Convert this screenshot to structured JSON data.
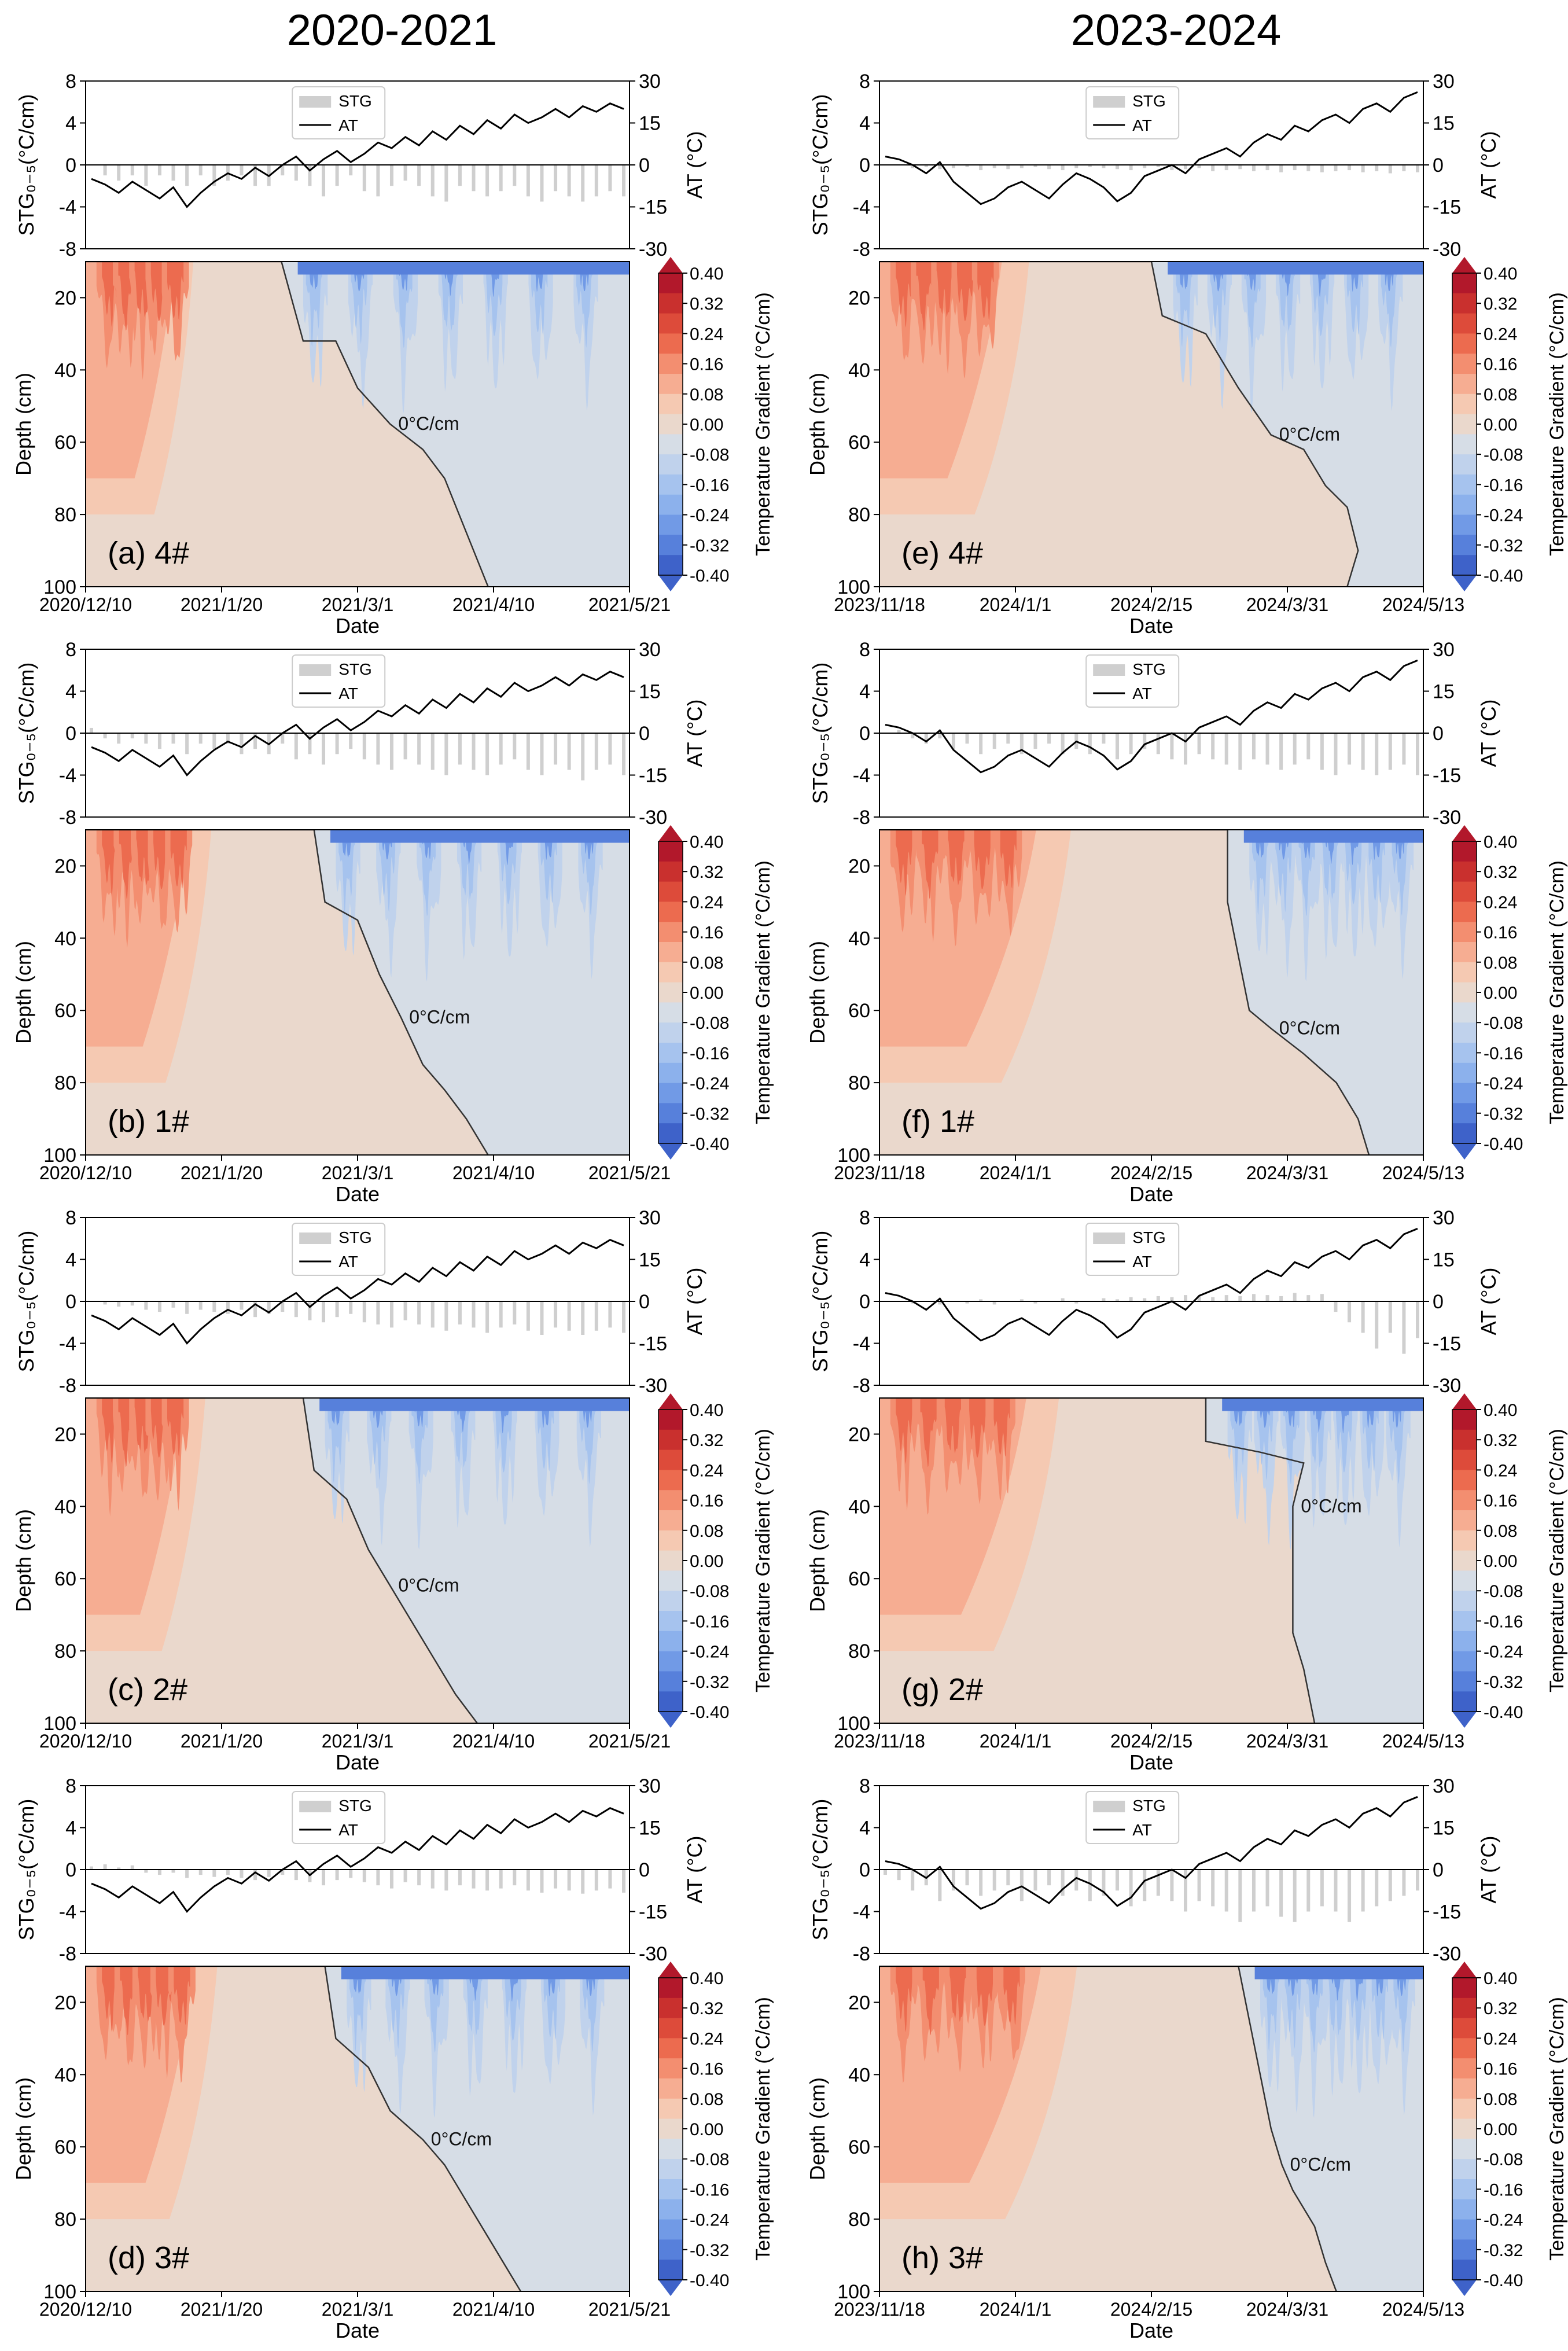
{
  "titles": {
    "left": "2020-2021",
    "right": "2023-2024"
  },
  "common": {
    "line_ylabel": "STG₀₋₅(°C/cm)",
    "line_y2label": "AT (°C)",
    "line_yticks": [
      "8",
      "4",
      "0",
      "-4",
      "-8"
    ],
    "line_y2ticks": [
      "30",
      "15",
      "0",
      "-15",
      "-30"
    ],
    "legend": {
      "stg": "STG",
      "at": "AT"
    },
    "contour_ylabel": "Depth (cm)",
    "contour_yticks": [
      "20",
      "40",
      "60",
      "80",
      "100"
    ],
    "contour_xlabel": "Date",
    "colorbar_label": "Temperature Gradient (°C/cm)",
    "colorbar_ticks": [
      "0.40",
      "0.32",
      "0.24",
      "0.16",
      "0.08",
      "0.00",
      "-0.08",
      "-0.16",
      "-0.24",
      "-0.32",
      "-0.40"
    ],
    "colors": {
      "levels": [
        "#b2182b",
        "#c9302e",
        "#dd4b3a",
        "#ec6b4f",
        "#f38e70",
        "#f6ad92",
        "#f5c9b2",
        "#ead8cc",
        "#d6dde6",
        "#c0d2ec",
        "#a6c3ee",
        "#8cb1ec",
        "#719ae6",
        "#5780db",
        "#3e62c9"
      ],
      "line": "#000000",
      "bar": "#cfcfcf"
    }
  },
  "chart_data": [
    {
      "id": "a",
      "label": "(a)  4#",
      "site": "4#",
      "period": "2020-2021",
      "type": "contour",
      "xticks": [
        "2020/12/10",
        "2021/1/20",
        "2021/3/1",
        "2021/4/10",
        "2021/5/21"
      ],
      "zero_contour_label": "0°C/cm",
      "zero_line": [
        [
          0,
          10
        ],
        [
          0.36,
          10
        ],
        [
          0.4,
          32
        ],
        [
          0.46,
          32
        ],
        [
          0.5,
          45
        ],
        [
          0.56,
          55
        ],
        [
          0.62,
          62
        ],
        [
          0.66,
          70
        ],
        [
          0.7,
          85
        ],
        [
          0.74,
          100
        ]
      ],
      "at": [
        -5,
        -7,
        -10,
        -6,
        -9,
        -12,
        -8,
        -15,
        -10,
        -6,
        -3,
        -5,
        -1,
        -4,
        0,
        3,
        -2,
        2,
        5,
        1,
        4,
        8,
        6,
        10,
        7,
        12,
        9,
        14,
        11,
        16,
        13,
        18,
        15,
        17,
        20,
        17,
        21,
        19,
        22,
        20
      ],
      "stg": [
        0,
        -1,
        -1.5,
        -1,
        -2,
        -1,
        -1.5,
        -2,
        -1,
        -2,
        -1.5,
        -1,
        -2,
        -2,
        -1,
        -1.5,
        -2,
        -3,
        -2,
        -1,
        -2.5,
        -3,
        -2,
        -1.5,
        -2,
        -3,
        -3.5,
        -2,
        -2.5,
        -3,
        -2.5,
        -2,
        -3,
        -3.5,
        -2.5,
        -3,
        -3.5,
        -3,
        -2.5,
        -3
      ]
    },
    {
      "id": "e",
      "label": "(e)  4#",
      "site": "4#",
      "period": "2023-2024",
      "type": "contour",
      "xticks": [
        "2023/11/18",
        "2024/1/1",
        "2024/2/15",
        "2024/3/31",
        "2024/5/13"
      ],
      "zero_contour_label": "0°C/cm",
      "zero_line": [
        [
          0,
          10
        ],
        [
          0.5,
          10
        ],
        [
          0.52,
          25
        ],
        [
          0.6,
          30
        ],
        [
          0.66,
          45
        ],
        [
          0.72,
          58
        ],
        [
          0.78,
          62
        ],
        [
          0.82,
          72
        ],
        [
          0.86,
          78
        ],
        [
          0.88,
          90
        ],
        [
          0.86,
          100
        ]
      ],
      "at": [
        3,
        2,
        0,
        -3,
        1,
        -6,
        -10,
        -14,
        -12,
        -8,
        -6,
        -9,
        -12,
        -7,
        -3,
        -5,
        -8,
        -13,
        -10,
        -4,
        -2,
        0,
        -3,
        2,
        4,
        6,
        3,
        8,
        11,
        9,
        14,
        12,
        16,
        18,
        15,
        20,
        22,
        19,
        24,
        26
      ],
      "stg": [
        0,
        0,
        -0.3,
        -0.2,
        -0.4,
        -0.3,
        -0.2,
        -0.5,
        -0.3,
        -0.4,
        -0.3,
        -0.2,
        -0.4,
        -0.5,
        -0.3,
        -0.2,
        -0.3,
        -0.4,
        -0.5,
        -0.3,
        -0.2,
        -0.5,
        -0.4,
        -0.3,
        -0.6,
        -0.5,
        -0.4,
        -0.6,
        -0.5,
        -0.7,
        -0.5,
        -0.6,
        -0.7,
        -0.6,
        -0.5,
        -0.7,
        -0.6,
        -0.8,
        -0.6,
        -0.7
      ]
    },
    {
      "id": "b",
      "label": "(b)  1#",
      "site": "1#",
      "period": "2020-2021",
      "type": "contour",
      "xticks": [
        "2020/12/10",
        "2021/1/20",
        "2021/3/1",
        "2021/4/10",
        "2021/5/21"
      ],
      "zero_contour_label": "0°C/cm",
      "zero_line": [
        [
          0,
          10
        ],
        [
          0.42,
          10
        ],
        [
          0.44,
          30
        ],
        [
          0.5,
          35
        ],
        [
          0.54,
          50
        ],
        [
          0.58,
          62
        ],
        [
          0.62,
          75
        ],
        [
          0.66,
          82
        ],
        [
          0.7,
          90
        ],
        [
          0.74,
          100
        ]
      ],
      "at": [
        -5,
        -7,
        -10,
        -6,
        -9,
        -12,
        -8,
        -15,
        -10,
        -6,
        -3,
        -5,
        -1,
        -4,
        0,
        3,
        -2,
        2,
        5,
        1,
        4,
        8,
        6,
        10,
        7,
        12,
        9,
        14,
        11,
        16,
        13,
        18,
        15,
        17,
        20,
        17,
        21,
        19,
        22,
        20
      ],
      "stg": [
        0.5,
        -0.5,
        -1,
        -0.5,
        -1,
        -1.5,
        -1,
        -2,
        -1,
        -1.5,
        -1,
        -2,
        -1.5,
        -2,
        -1,
        -2.5,
        -2,
        -3,
        -2,
        -1.5,
        -2.5,
        -3,
        -3.5,
        -2.5,
        -3,
        -3.5,
        -4,
        -3,
        -3.5,
        -4,
        -3,
        -2.5,
        -3.5,
        -4,
        -3,
        -3.5,
        -4.5,
        -3.5,
        -3,
        -4
      ]
    },
    {
      "id": "f",
      "label": "(f)  1#",
      "site": "1#",
      "period": "2023-2024",
      "type": "contour",
      "xticks": [
        "2023/11/18",
        "2024/1/1",
        "2024/2/15",
        "2024/3/31",
        "2024/5/13"
      ],
      "zero_contour_label": "0°C/cm",
      "zero_line": [
        [
          0,
          10
        ],
        [
          0.64,
          10
        ],
        [
          0.64,
          30
        ],
        [
          0.66,
          45
        ],
        [
          0.68,
          60
        ],
        [
          0.72,
          65
        ],
        [
          0.78,
          72
        ],
        [
          0.84,
          80
        ],
        [
          0.88,
          90
        ],
        [
          0.9,
          100
        ]
      ],
      "at": [
        3,
        2,
        0,
        -3,
        1,
        -6,
        -10,
        -14,
        -12,
        -8,
        -6,
        -9,
        -12,
        -7,
        -3,
        -5,
        -8,
        -13,
        -10,
        -4,
        -2,
        0,
        -3,
        2,
        4,
        6,
        3,
        8,
        11,
        9,
        14,
        12,
        16,
        18,
        15,
        20,
        22,
        19,
        24,
        26
      ],
      "stg": [
        0,
        0.3,
        -0.5,
        -1,
        -0.5,
        -1.5,
        -1,
        -2,
        -1.5,
        -1,
        -2,
        -1.5,
        -1,
        -2,
        -1.5,
        -2,
        -1,
        -2.5,
        -2,
        -1.5,
        -2,
        -2.5,
        -3,
        -2,
        -2.5,
        -3,
        -3.5,
        -2.5,
        -3,
        -3.5,
        -3,
        -2.5,
        -3.5,
        -4,
        -3,
        -3.5,
        -4,
        -3.5,
        -3,
        -4
      ]
    },
    {
      "id": "c",
      "label": "(c)  2#",
      "site": "2#",
      "period": "2020-2021",
      "type": "contour",
      "xticks": [
        "2020/12/10",
        "2021/1/20",
        "2021/3/1",
        "2021/4/10",
        "2021/5/21"
      ],
      "zero_contour_label": "0°C/cm",
      "zero_line": [
        [
          0,
          10
        ],
        [
          0.4,
          10
        ],
        [
          0.42,
          30
        ],
        [
          0.48,
          38
        ],
        [
          0.52,
          52
        ],
        [
          0.56,
          62
        ],
        [
          0.6,
          72
        ],
        [
          0.64,
          82
        ],
        [
          0.68,
          92
        ],
        [
          0.72,
          100
        ]
      ],
      "at": [
        -5,
        -7,
        -10,
        -6,
        -9,
        -12,
        -8,
        -15,
        -10,
        -6,
        -3,
        -5,
        -1,
        -4,
        0,
        3,
        -2,
        2,
        5,
        1,
        4,
        8,
        6,
        10,
        7,
        12,
        9,
        14,
        11,
        16,
        13,
        18,
        15,
        17,
        20,
        17,
        21,
        19,
        22,
        20
      ],
      "stg": [
        0,
        -0.3,
        -0.5,
        -0.4,
        -0.8,
        -1,
        -0.6,
        -1.2,
        -0.8,
        -1,
        -1.2,
        -0.8,
        -1.5,
        -1.2,
        -1,
        -1.5,
        -1.8,
        -2,
        -1.5,
        -1.2,
        -2,
        -2.2,
        -2.5,
        -1.8,
        -2.2,
        -2.5,
        -2.8,
        -2.2,
        -2.5,
        -3,
        -2.5,
        -2.2,
        -2.8,
        -3.2,
        -2.5,
        -2.8,
        -3.2,
        -2.8,
        -2.5,
        -3
      ]
    },
    {
      "id": "g",
      "label": "(g)  2#",
      "site": "2#",
      "period": "2023-2024",
      "type": "contour",
      "xticks": [
        "2023/11/18",
        "2024/1/1",
        "2024/2/15",
        "2024/3/31",
        "2024/5/13"
      ],
      "zero_contour_label": "0°C/cm",
      "zero_line": [
        [
          0,
          10
        ],
        [
          0.6,
          10
        ],
        [
          0.6,
          22
        ],
        [
          0.7,
          25
        ],
        [
          0.78,
          28
        ],
        [
          0.76,
          40
        ],
        [
          0.76,
          60
        ],
        [
          0.76,
          75
        ],
        [
          0.78,
          85
        ],
        [
          0.8,
          100
        ]
      ],
      "at": [
        3,
        2,
        0,
        -3,
        1,
        -6,
        -10,
        -14,
        -12,
        -8,
        -6,
        -9,
        -12,
        -7,
        -3,
        -5,
        -8,
        -13,
        -10,
        -4,
        -2,
        0,
        -3,
        2,
        4,
        6,
        3,
        8,
        11,
        9,
        14,
        12,
        16,
        18,
        15,
        20,
        22,
        19,
        24,
        26
      ],
      "stg": [
        0,
        0,
        -0.2,
        0,
        -0.3,
        0,
        -0.2,
        0.2,
        -0.3,
        0,
        0.2,
        -0.2,
        0,
        0.3,
        -0.2,
        0,
        0.3,
        0.2,
        0.4,
        0.3,
        0.5,
        0.4,
        0.6,
        0.5,
        0.4,
        0.6,
        0.5,
        0.7,
        0.6,
        0.5,
        0.8,
        0.6,
        0.7,
        -1,
        -2,
        -3,
        -4.5,
        -3,
        -5,
        -3.5
      ]
    },
    {
      "id": "d",
      "label": "(d)  3#",
      "site": "3#",
      "period": "2020-2021",
      "type": "contour",
      "xticks": [
        "2020/12/10",
        "2021/1/20",
        "2021/3/1",
        "2021/4/10",
        "2021/5/21"
      ],
      "zero_contour_label": "0°C/cm",
      "zero_line": [
        [
          0,
          10
        ],
        [
          0.44,
          10
        ],
        [
          0.46,
          30
        ],
        [
          0.52,
          38
        ],
        [
          0.56,
          50
        ],
        [
          0.62,
          58
        ],
        [
          0.66,
          65
        ],
        [
          0.7,
          75
        ],
        [
          0.74,
          85
        ],
        [
          0.78,
          95
        ],
        [
          0.8,
          100
        ]
      ],
      "at": [
        -5,
        -7,
        -10,
        -6,
        -9,
        -12,
        -8,
        -15,
        -10,
        -6,
        -3,
        -5,
        -1,
        -4,
        0,
        3,
        -2,
        2,
        5,
        1,
        4,
        8,
        6,
        10,
        7,
        12,
        9,
        14,
        11,
        16,
        13,
        18,
        15,
        17,
        20,
        17,
        21,
        19,
        22,
        20
      ],
      "stg": [
        0.3,
        0.5,
        0.2,
        0.4,
        -0.3,
        -0.5,
        -0.3,
        -0.8,
        -0.5,
        -0.7,
        -0.5,
        -0.8,
        -1,
        -0.7,
        -0.5,
        -1,
        -1.2,
        -1.5,
        -1,
        -0.8,
        -1.2,
        -1.5,
        -1.8,
        -1.2,
        -1.5,
        -1.8,
        -2,
        -1.5,
        -1.8,
        -2,
        -1.8,
        -1.5,
        -2,
        -2.2,
        -1.8,
        -2,
        -2.3,
        -2,
        -1.8,
        -2.2
      ]
    },
    {
      "id": "h",
      "label": "(h)  3#",
      "site": "3#",
      "period": "2023-2024",
      "type": "contour",
      "xticks": [
        "2023/11/18",
        "2024/1/1",
        "2024/2/15",
        "2024/3/31",
        "2024/5/13"
      ],
      "zero_contour_label": "0°C/cm",
      "zero_line": [
        [
          0,
          10
        ],
        [
          0.66,
          10
        ],
        [
          0.68,
          25
        ],
        [
          0.7,
          40
        ],
        [
          0.72,
          55
        ],
        [
          0.74,
          65
        ],
        [
          0.76,
          72
        ],
        [
          0.8,
          82
        ],
        [
          0.82,
          92
        ],
        [
          0.84,
          100
        ]
      ],
      "at": [
        3,
        2,
        0,
        -3,
        1,
        -6,
        -10,
        -14,
        -12,
        -8,
        -6,
        -9,
        -12,
        -7,
        -3,
        -5,
        -8,
        -13,
        -10,
        -4,
        -2,
        0,
        -3,
        2,
        4,
        6,
        3,
        8,
        11,
        9,
        14,
        12,
        16,
        18,
        15,
        20,
        22,
        19,
        24,
        26
      ],
      "stg": [
        -0.5,
        -1,
        -2,
        -1.5,
        -3,
        -2,
        -1.5,
        -2.5,
        -2,
        -1.5,
        -3,
        -2,
        -1.5,
        -2.5,
        -2,
        -3,
        -2.5,
        -2,
        -3.5,
        -3,
        -2.5,
        -3,
        -4,
        -3,
        -3.5,
        -4,
        -5,
        -4,
        -3.5,
        -4.5,
        -5,
        -4,
        -3.5,
        -4,
        -5,
        -4,
        -3.5,
        -3,
        -2.5,
        -2
      ]
    }
  ]
}
